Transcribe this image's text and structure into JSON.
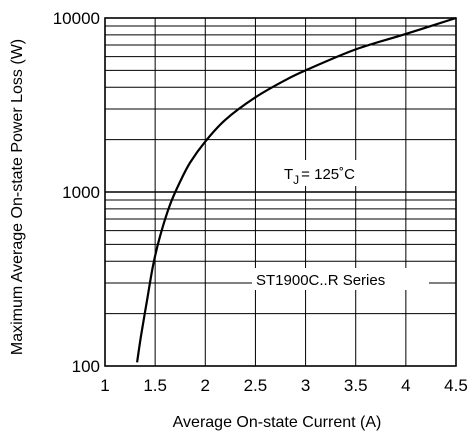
{
  "chart_data": {
    "type": "line",
    "title": "",
    "xlabel": "Average On-state Current (A)",
    "ylabel": "Maximum Average On-state Power Loss (W)",
    "xlim": [
      1,
      4.5
    ],
    "ylim": [
      100,
      10000
    ],
    "yscale": "log",
    "grid": true,
    "x_ticks": [
      "1",
      "1.5",
      "2",
      "2.5",
      "3",
      "3.5",
      "4",
      "4.5"
    ],
    "y_ticks": [
      "100",
      "1000",
      "10000"
    ],
    "series": [
      {
        "x": [
          1.32,
          1.36,
          1.42,
          1.48,
          1.55,
          1.65,
          1.75,
          1.85,
          2.0,
          2.2,
          2.5,
          2.8,
          3.0,
          3.5,
          4.0,
          4.5
        ],
        "y": [
          105,
          150,
          240,
          380,
          560,
          850,
          1150,
          1480,
          1950,
          2600,
          3500,
          4400,
          5000,
          6600,
          8100,
          10000
        ]
      }
    ],
    "annotations": {
      "tj_main": "T",
      "tj_sub": "J",
      "tj_rest": "= 125˚C",
      "series_label": "ST1900C..R Series"
    },
    "line_color": "#000000"
  }
}
